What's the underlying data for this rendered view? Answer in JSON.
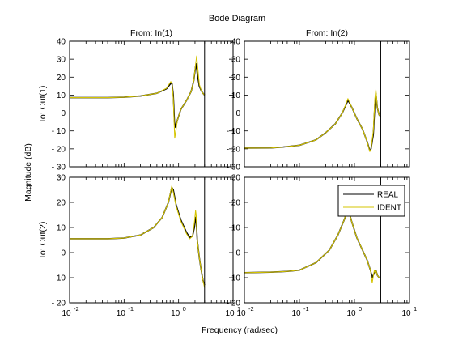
{
  "chart_data": {
    "type": "line",
    "title": "Bode Diagram",
    "xlabel": "Frequency  (rad/sec)",
    "ylabel": "Magnitude (dB)",
    "x_scale": "log",
    "xlim": [
      0.01,
      10
    ],
    "x_ticks": [
      0.01,
      0.1,
      1,
      10
    ],
    "x_tick_labels": [
      {
        "base": "10",
        "exp": "-2"
      },
      {
        "base": "10",
        "exp": "-1"
      },
      {
        "base": "10",
        "exp": "0"
      },
      {
        "base": "10",
        "exp": "1"
      }
    ],
    "column_titles": [
      "From: In(1)",
      "From: In(2)"
    ],
    "row_titles": [
      "To: Out(1)",
      "To: Out(2)"
    ],
    "vline_x": 3.0,
    "grid": false,
    "legend": {
      "placement": "top-right",
      "entries": [
        {
          "name": "REAL",
          "color": "#000000"
        },
        {
          "name": "IDENT",
          "color": "#d4c400"
        }
      ]
    },
    "panels": [
      {
        "row": 0,
        "col": 0,
        "ylim": [
          -30,
          40
        ],
        "y_ticks": [
          -30,
          -20,
          -10,
          0,
          10,
          20,
          30,
          40
        ],
        "series": [
          {
            "name": "REAL",
            "points": [
              [
                0.01,
                8.6
              ],
              [
                0.05,
                8.6
              ],
              [
                0.1,
                8.8
              ],
              [
                0.2,
                9.5
              ],
              [
                0.4,
                11
              ],
              [
                0.6,
                13.5
              ],
              [
                0.72,
                16.5
              ],
              [
                0.76,
                16.2
              ],
              [
                0.8,
                10
              ],
              [
                0.84,
                -5
              ],
              [
                0.88,
                -8
              ],
              [
                0.95,
                -4
              ],
              [
                1.1,
                2
              ],
              [
                1.4,
                7
              ],
              [
                1.7,
                12
              ],
              [
                1.9,
                18
              ],
              [
                2.05,
                26
              ],
              [
                2.1,
                27.5
              ],
              [
                2.2,
                22
              ],
              [
                2.4,
                15
              ],
              [
                2.6,
                12.5
              ],
              [
                2.8,
                11
              ],
              [
                3.0,
                10
              ]
            ]
          },
          {
            "name": "IDENT",
            "points": [
              [
                0.01,
                8.6
              ],
              [
                0.05,
                8.6
              ],
              [
                0.1,
                8.8
              ],
              [
                0.2,
                9.5
              ],
              [
                0.4,
                11
              ],
              [
                0.6,
                13.8
              ],
              [
                0.72,
                17.5
              ],
              [
                0.76,
                16
              ],
              [
                0.8,
                8
              ],
              [
                0.85,
                -14
              ],
              [
                0.9,
                -9
              ],
              [
                0.95,
                -4
              ],
              [
                1.1,
                2
              ],
              [
                1.4,
                7
              ],
              [
                1.7,
                12
              ],
              [
                1.9,
                18
              ],
              [
                2.05,
                27
              ],
              [
                2.15,
                31.8
              ],
              [
                2.25,
                25
              ],
              [
                2.4,
                16
              ],
              [
                2.6,
                12.5
              ],
              [
                2.8,
                11
              ],
              [
                3.0,
                10
              ]
            ]
          }
        ]
      },
      {
        "row": 0,
        "col": 1,
        "ylim": [
          -30,
          40
        ],
        "y_ticks": [
          -30,
          -20,
          -10,
          0,
          10,
          20,
          30,
          40
        ],
        "series": [
          {
            "name": "REAL",
            "points": [
              [
                0.01,
                -19.6
              ],
              [
                0.03,
                -19.5
              ],
              [
                0.05,
                -19
              ],
              [
                0.1,
                -18
              ],
              [
                0.2,
                -15
              ],
              [
                0.3,
                -11
              ],
              [
                0.45,
                -6
              ],
              [
                0.6,
                0
              ],
              [
                0.7,
                4.5
              ],
              [
                0.76,
                7
              ],
              [
                0.8,
                6
              ],
              [
                0.9,
                3
              ],
              [
                1.1,
                -3
              ],
              [
                1.4,
                -9
              ],
              [
                1.7,
                -16
              ],
              [
                1.9,
                -21
              ],
              [
                2.0,
                -20
              ],
              [
                2.2,
                -12
              ],
              [
                2.35,
                5
              ],
              [
                2.45,
                11
              ],
              [
                2.6,
                3
              ],
              [
                2.8,
                -1
              ],
              [
                3.0,
                -2
              ]
            ]
          },
          {
            "name": "IDENT",
            "points": [
              [
                0.01,
                -19.6
              ],
              [
                0.03,
                -19.5
              ],
              [
                0.05,
                -19
              ],
              [
                0.1,
                -18
              ],
              [
                0.2,
                -15
              ],
              [
                0.3,
                -11
              ],
              [
                0.45,
                -6
              ],
              [
                0.6,
                0
              ],
              [
                0.7,
                5
              ],
              [
                0.76,
                8
              ],
              [
                0.8,
                6.5
              ],
              [
                0.9,
                3
              ],
              [
                1.1,
                -3
              ],
              [
                1.4,
                -9
              ],
              [
                1.7,
                -16
              ],
              [
                1.9,
                -21.5
              ],
              [
                2.0,
                -20
              ],
              [
                2.2,
                -10
              ],
              [
                2.35,
                8
              ],
              [
                2.45,
                13
              ],
              [
                2.6,
                3
              ],
              [
                2.8,
                -1
              ],
              [
                3.0,
                -2
              ]
            ]
          }
        ]
      },
      {
        "row": 1,
        "col": 0,
        "ylim": [
          -20,
          30
        ],
        "y_ticks": [
          -20,
          -10,
          0,
          10,
          20,
          30
        ],
        "series": [
          {
            "name": "REAL",
            "points": [
              [
                0.01,
                5.5
              ],
              [
                0.05,
                5.5
              ],
              [
                0.1,
                5.8
              ],
              [
                0.2,
                7
              ],
              [
                0.35,
                10
              ],
              [
                0.5,
                14
              ],
              [
                0.65,
                20
              ],
              [
                0.75,
                26
              ],
              [
                0.8,
                25
              ],
              [
                0.9,
                19
              ],
              [
                1.1,
                13
              ],
              [
                1.4,
                8
              ],
              [
                1.6,
                6
              ],
              [
                1.8,
                6.5
              ],
              [
                1.95,
                10
              ],
              [
                2.05,
                14
              ],
              [
                2.1,
                13.5
              ],
              [
                2.2,
                5
              ],
              [
                2.4,
                -2
              ],
              [
                2.6,
                -7
              ],
              [
                2.8,
                -11
              ],
              [
                3.0,
                -13
              ]
            ]
          },
          {
            "name": "IDENT",
            "points": [
              [
                0.01,
                5.5
              ],
              [
                0.05,
                5.5
              ],
              [
                0.1,
                5.8
              ],
              [
                0.2,
                7
              ],
              [
                0.35,
                10
              ],
              [
                0.5,
                14
              ],
              [
                0.65,
                20
              ],
              [
                0.75,
                26.5
              ],
              [
                0.8,
                24
              ],
              [
                0.9,
                18.5
              ],
              [
                1.1,
                12.5
              ],
              [
                1.4,
                7.5
              ],
              [
                1.6,
                5.5
              ],
              [
                1.8,
                6.5
              ],
              [
                1.95,
                12
              ],
              [
                2.05,
                16.7
              ],
              [
                2.1,
                15
              ],
              [
                2.2,
                5
              ],
              [
                2.4,
                -2
              ],
              [
                2.6,
                -7
              ],
              [
                2.8,
                -11
              ],
              [
                3.0,
                -14
              ]
            ]
          }
        ]
      },
      {
        "row": 1,
        "col": 1,
        "ylim": [
          -20,
          30
        ],
        "y_ticks": [
          -20,
          -10,
          0,
          10,
          20,
          30
        ],
        "series": [
          {
            "name": "REAL",
            "points": [
              [
                0.01,
                -8
              ],
              [
                0.03,
                -7.8
              ],
              [
                0.06,
                -7.5
              ],
              [
                0.1,
                -7
              ],
              [
                0.2,
                -4
              ],
              [
                0.35,
                1
              ],
              [
                0.5,
                7
              ],
              [
                0.65,
                13
              ],
              [
                0.75,
                17
              ],
              [
                0.8,
                16
              ],
              [
                0.9,
                12
              ],
              [
                1.1,
                6
              ],
              [
                1.4,
                1
              ],
              [
                1.7,
                -3
              ],
              [
                1.95,
                -7
              ],
              [
                2.1,
                -10
              ],
              [
                2.3,
                -8
              ],
              [
                2.45,
                -7
              ],
              [
                2.6,
                -9
              ],
              [
                2.8,
                -10
              ],
              [
                3.0,
                -10
              ]
            ]
          },
          {
            "name": "IDENT",
            "points": [
              [
                0.01,
                -8
              ],
              [
                0.03,
                -7.8
              ],
              [
                0.06,
                -7.5
              ],
              [
                0.1,
                -7
              ],
              [
                0.2,
                -4
              ],
              [
                0.35,
                1
              ],
              [
                0.5,
                7
              ],
              [
                0.65,
                13
              ],
              [
                0.75,
                17.5
              ],
              [
                0.8,
                16
              ],
              [
                0.9,
                12
              ],
              [
                1.1,
                6
              ],
              [
                1.4,
                1
              ],
              [
                1.7,
                -3
              ],
              [
                1.95,
                -7
              ],
              [
                2.1,
                -12
              ],
              [
                2.3,
                -7
              ],
              [
                2.4,
                -8
              ],
              [
                2.45,
                -7
              ],
              [
                2.6,
                -9
              ],
              [
                2.8,
                -10
              ],
              [
                3.0,
                -10
              ]
            ]
          }
        ]
      }
    ]
  }
}
